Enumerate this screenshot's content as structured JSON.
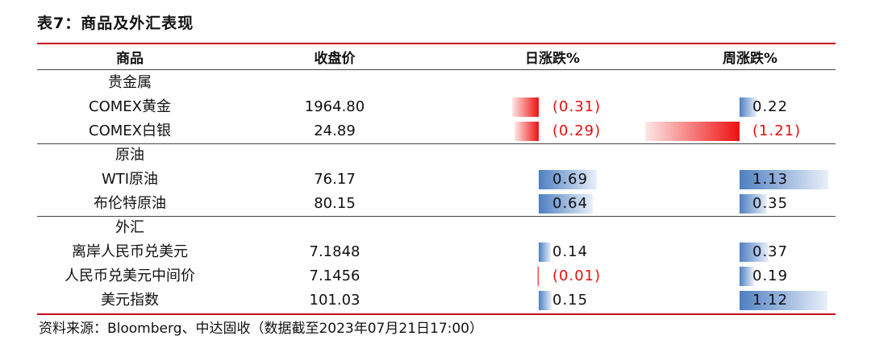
{
  "title": "表7：商品及外汇表现",
  "headers": {
    "item": "商品",
    "close": "收盘价",
    "daily": "日涨跌%",
    "weekly": "周涨跌%"
  },
  "groups": [
    {
      "label": "贵金属",
      "rows": [
        {
          "name": "COMEX黄金",
          "close": "1964.80",
          "daily": "(0.31)",
          "daily_value": -0.31,
          "weekly": "0.22",
          "weekly_value": 0.22
        },
        {
          "name": "COMEX白银",
          "close": "24.89",
          "daily": "(0.29)",
          "daily_value": -0.29,
          "weekly": "(1.21)",
          "weekly_value": -1.21
        }
      ]
    },
    {
      "label": "原油",
      "rows": [
        {
          "name": "WTI原油",
          "close": "76.17",
          "daily": "0.69",
          "daily_value": 0.69,
          "weekly": "1.13",
          "weekly_value": 1.13
        },
        {
          "name": "布伦特原油",
          "close": "80.15",
          "daily": "0.64",
          "daily_value": 0.64,
          "weekly": "0.35",
          "weekly_value": 0.35
        }
      ]
    },
    {
      "label": "外汇",
      "rows": [
        {
          "name": "离岸人民币兑美元",
          "close": "7.1848",
          "daily": "0.14",
          "daily_value": 0.14,
          "weekly": "0.37",
          "weekly_value": 0.37
        },
        {
          "name": "人民币兑美元中间价",
          "close": "7.1456",
          "daily": "(0.01)",
          "daily_value": -0.01,
          "weekly": "0.19",
          "weekly_value": 0.19
        },
        {
          "name": "美元指数",
          "close": "101.03",
          "daily": "0.15",
          "daily_value": 0.15,
          "weekly": "1.12",
          "weekly_value": 1.12
        }
      ]
    }
  ],
  "source": "资料来源：Bloomberg、中达固收（数据截至2023年07月21日17:00）",
  "colors": {
    "rule": "#d0021b",
    "negative_bar": "#ee1111",
    "positive_bar": "#4f7fc2",
    "negative_text": "#e01010"
  }
}
